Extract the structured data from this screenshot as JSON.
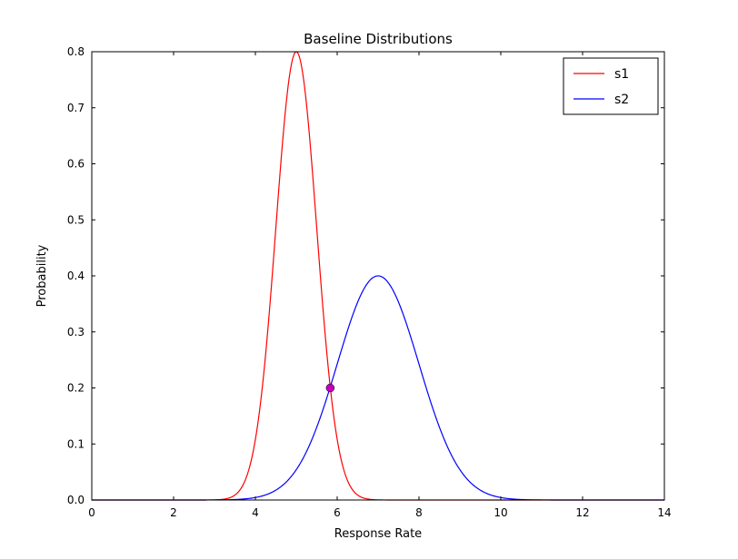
{
  "chart_data": {
    "type": "line",
    "title": "Baseline Distributions",
    "xlabel": "Response Rate",
    "ylabel": "Probability",
    "xlim": [
      0,
      14
    ],
    "ylim": [
      0.0,
      0.8
    ],
    "xticks": [
      0,
      2,
      4,
      6,
      8,
      10,
      12,
      14
    ],
    "xtick_labels": [
      "0",
      "2",
      "4",
      "6",
      "8",
      "10",
      "12",
      "14"
    ],
    "yticks": [
      0.0,
      0.1,
      0.2,
      0.3,
      0.4,
      0.5,
      0.6,
      0.7,
      0.8
    ],
    "ytick_labels": [
      "0.0",
      "0.1",
      "0.2",
      "0.3",
      "0.4",
      "0.5",
      "0.6",
      "0.7",
      "0.8"
    ],
    "grid": false,
    "frame_color": "#000000",
    "background_color": "#ffffff",
    "legend": {
      "position": "upper right",
      "entries": [
        {
          "label": "s1",
          "color": "#ff0000"
        },
        {
          "label": "s2",
          "color": "#0000ff"
        }
      ]
    },
    "series": [
      {
        "name": "s1",
        "curve": "gaussian",
        "mean": 5.0,
        "std": 0.5,
        "peak": 0.8,
        "color": "#ff0000"
      },
      {
        "name": "s2",
        "curve": "gaussian",
        "mean": 7.0,
        "std": 1.0,
        "peak": 0.4,
        "color": "#0000ff"
      }
    ],
    "markers": [
      {
        "name": "intersection-point",
        "x": 5.83,
        "y": 0.2,
        "color": "#bf00bf",
        "size": 4.5
      }
    ]
  }
}
